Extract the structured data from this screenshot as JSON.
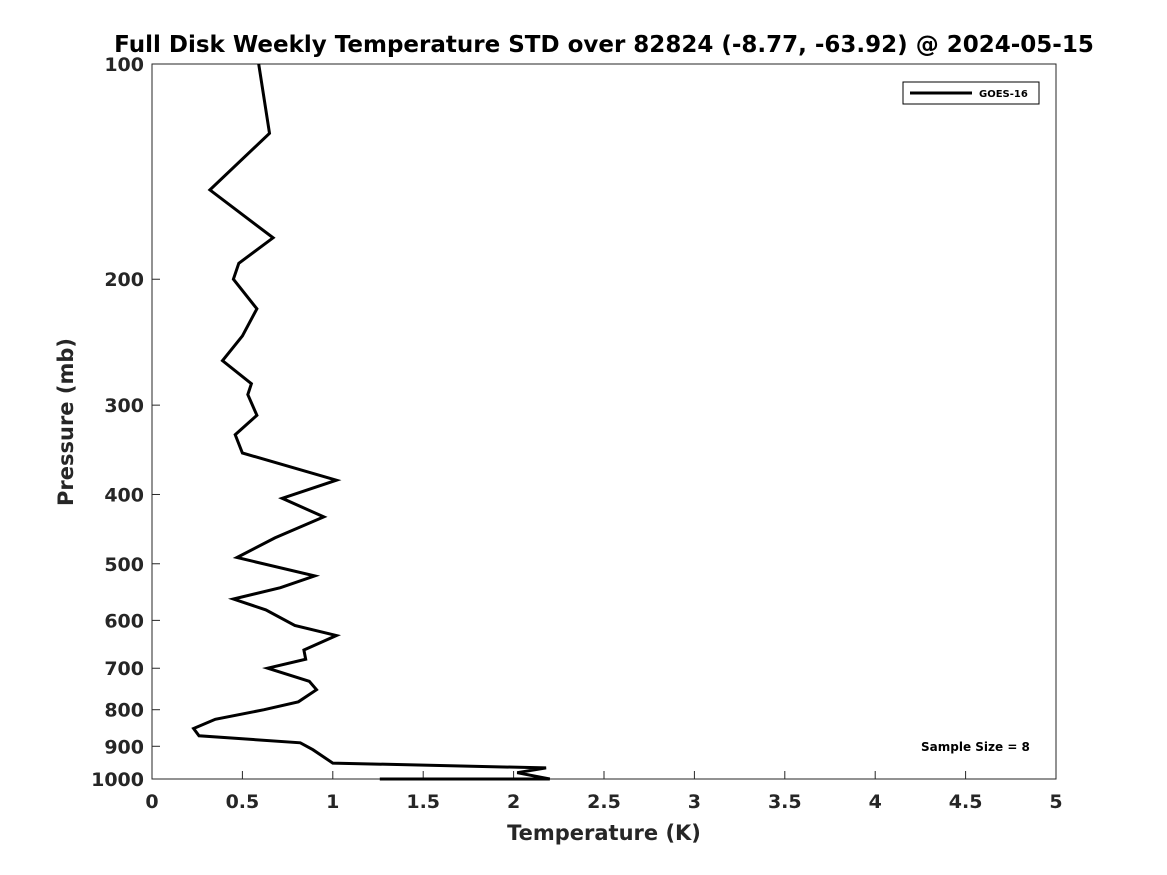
{
  "chart_data": {
    "type": "line",
    "title": "Full Disk Weekly Temperature STD over 82824 (-8.77, -63.92) @ 2024-05-15",
    "xlabel": "Temperature (K)",
    "ylabel": "Pressure (mb)",
    "xlim": [
      0,
      5
    ],
    "ylim": [
      100,
      1000
    ],
    "y_scale": "log",
    "y_reversed": true,
    "grid": false,
    "legend_position": "top-right",
    "xticks": [
      "0",
      "0.5",
      "1",
      "1.5",
      "2",
      "2.5",
      "3",
      "3.5",
      "4",
      "4.5",
      "5"
    ],
    "yticks": [
      "100",
      "200",
      "300",
      "400",
      "500",
      "600",
      "700",
      "800",
      "900",
      "1000"
    ],
    "annotation": "Sample Size = 8",
    "series": [
      {
        "name": "GOES-16",
        "color": "#000000",
        "x": [
          0.59,
          0.65,
          0.32,
          0.67,
          0.48,
          0.45,
          0.58,
          0.5,
          0.39,
          0.55,
          0.53,
          0.58,
          0.46,
          0.5,
          1.02,
          0.72,
          0.95,
          0.68,
          0.47,
          0.9,
          0.71,
          0.45,
          0.63,
          0.79,
          1.02,
          0.84,
          0.85,
          0.64,
          0.87,
          0.91,
          0.81,
          0.62,
          0.35,
          0.23,
          0.26,
          0.82,
          0.89,
          1.0,
          2.18,
          2.02,
          2.2,
          1.26
        ],
        "y": [
          100,
          125,
          150,
          175,
          190,
          200,
          220,
          240,
          260,
          280,
          290,
          310,
          330,
          350,
          382,
          405,
          430,
          460,
          490,
          520,
          540,
          560,
          580,
          610,
          630,
          660,
          680,
          700,
          730,
          750,
          780,
          800,
          825,
          850,
          870,
          890,
          910,
          950,
          965,
          980,
          1000,
          1005
        ]
      }
    ]
  }
}
